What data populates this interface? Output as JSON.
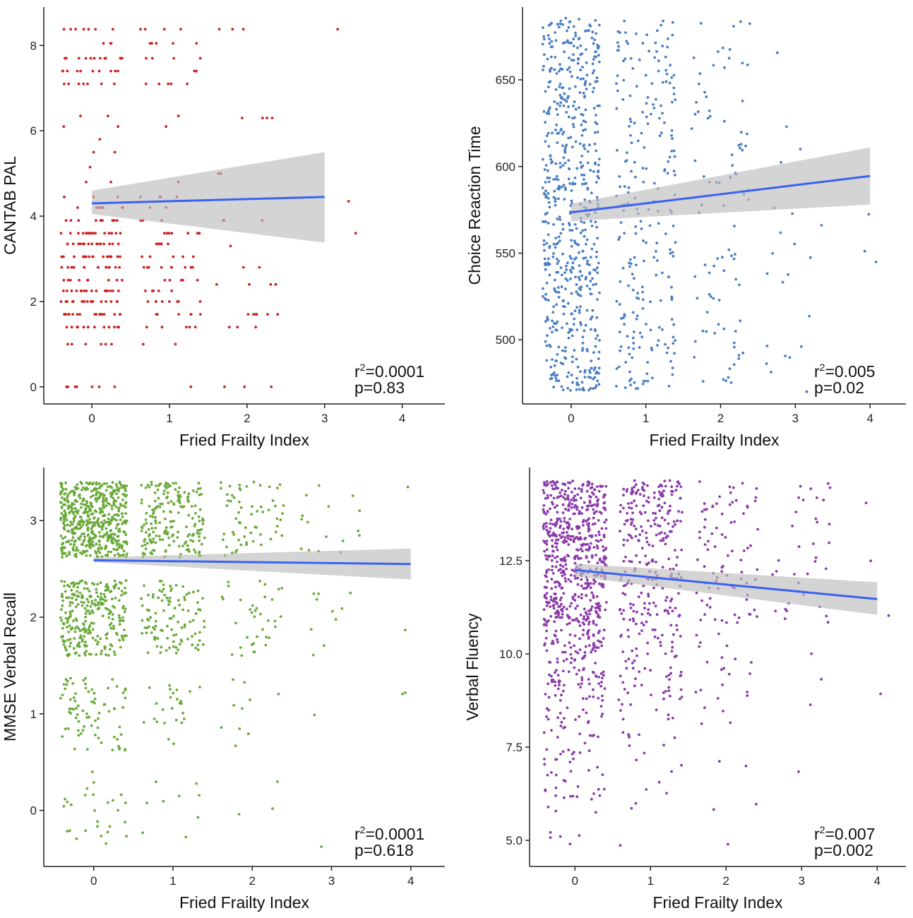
{
  "chart_data": [
    {
      "id": "pal",
      "type": "scatter",
      "point_color": "#cc2222",
      "xlabel": "Fried Frailty Index",
      "ylabel": "CANTAB PAL",
      "xlim": [
        -0.62,
        4.55
      ],
      "ylim": [
        -0.4,
        8.9
      ],
      "xticks": [
        "0",
        "1",
        "2",
        "3",
        "4"
      ],
      "yticks": [
        "0",
        "2",
        "4",
        "6",
        "8"
      ],
      "ytick_values": [
        0,
        2,
        4,
        6,
        8
      ],
      "fit": {
        "x": [
          0,
          3
        ],
        "y": [
          4.3,
          4.45
        ],
        "ci_lower": [
          4.05,
          3.38
        ],
        "ci_upper": [
          4.6,
          5.5
        ],
        "color": "#3a62f2"
      },
      "stats": {
        "r2_prefix": "r",
        "r2_sup": "2",
        "r2_value": "=0.0001",
        "p_text": "p=0.83"
      }
    },
    {
      "id": "crt",
      "type": "scatter",
      "point_color": "#4a7ec2",
      "xlabel": "Fried Frailty Index",
      "ylabel": "Choice Reaction Time",
      "xlim": [
        -0.65,
        4.48
      ],
      "ylim": [
        463,
        692
      ],
      "xticks": [
        "0",
        "1",
        "2",
        "3",
        "4"
      ],
      "yticks": [
        "500",
        "550",
        "600",
        "650"
      ],
      "ytick_values": [
        500,
        550,
        600,
        650
      ],
      "fit": {
        "x": [
          0,
          4
        ],
        "y": [
          573.5,
          594.5
        ],
        "ci_lower": [
          568.5,
          578
        ],
        "ci_upper": [
          578.5,
          611
        ],
        "color": "#3a62f2"
      },
      "stats": {
        "r2_prefix": "r",
        "r2_sup": "2",
        "r2_value": "=0.005",
        "p_text": "p=0.02"
      }
    },
    {
      "id": "mmse",
      "type": "scatter",
      "point_color": "#6aaa3a",
      "xlabel": "Fried Frailty Index",
      "ylabel": "MMSE Verbal Recall",
      "xlim": [
        -0.63,
        4.43
      ],
      "ylim": [
        -0.58,
        3.55
      ],
      "xticks": [
        "0",
        "1",
        "2",
        "3",
        "4"
      ],
      "yticks": [
        "0",
        "1",
        "2",
        "3"
      ],
      "ytick_values": [
        0,
        1,
        2,
        3
      ],
      "fit": {
        "x": [
          0,
          4
        ],
        "y": [
          2.59,
          2.55
        ],
        "ci_lower": [
          2.57,
          2.39
        ],
        "ci_upper": [
          2.62,
          2.71
        ],
        "color": "#3a62f2"
      },
      "stats": {
        "r2_prefix": "r",
        "r2_sup": "2",
        "r2_value": "=0.0001",
        "p_text": "p=0.618"
      }
    },
    {
      "id": "vf",
      "type": "scatter",
      "point_color": "#8a3aa8",
      "xlabel": "Fried Frailty Index",
      "ylabel": "Verbal Fluency",
      "xlim": [
        -0.6,
        4.38
      ],
      "ylim": [
        4.3,
        15.0
      ],
      "xticks": [
        "0",
        "1",
        "2",
        "3",
        "4"
      ],
      "yticks": [
        "5.0",
        "7.5",
        "10.0",
        "12.5"
      ],
      "ytick_values": [
        5.0,
        7.5,
        10.0,
        12.5
      ],
      "fit": {
        "x": [
          0,
          4
        ],
        "y": [
          12.25,
          11.47
        ],
        "ci_lower": [
          12.08,
          11.05
        ],
        "ci_upper": [
          12.42,
          11.92
        ],
        "color": "#3a62f2"
      },
      "stats": {
        "r2_prefix": "r",
        "r2_sup": "2",
        "r2_value": "=0.007",
        "p_text": "p=0.002"
      }
    }
  ]
}
